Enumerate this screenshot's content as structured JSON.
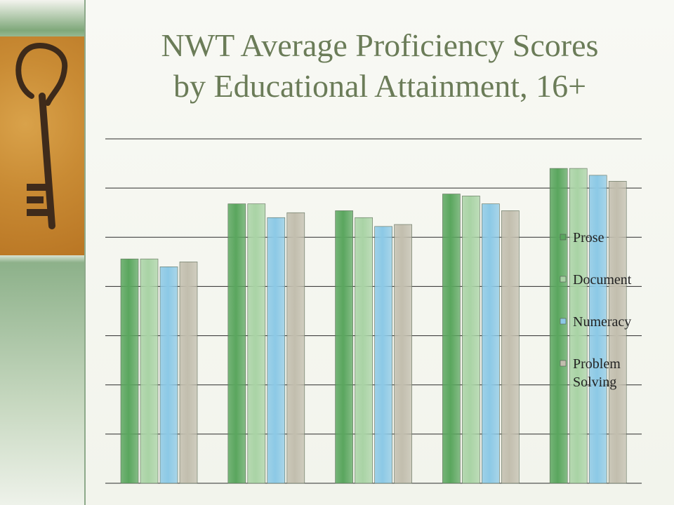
{
  "slide": {
    "title_line1": "NWT Average Proficiency Scores",
    "title_line2": "by Educational Attainment, 16+"
  },
  "chart_data": {
    "type": "bar",
    "title": "NWT Average Proficiency Scores by Educational Attainment, 16+",
    "categories": [
      "",
      "",
      "",
      "",
      ""
    ],
    "ylim": [
      0,
      350
    ],
    "grid": true,
    "legend_position": "right",
    "series": [
      {
        "name": "Prose",
        "color": "#5aa65e",
        "values": [
          228,
          284,
          277,
          294,
          320
        ]
      },
      {
        "name": "Document",
        "color": "#a9d3a5",
        "values": [
          228,
          284,
          270,
          292,
          320
        ]
      },
      {
        "name": "Numeracy",
        "color": "#8cc9e6",
        "values": [
          220,
          270,
          261,
          284,
          313
        ]
      },
      {
        "name": "Problem Solving",
        "color": "#c2beae",
        "values": [
          225,
          275,
          263,
          277,
          307
        ]
      }
    ]
  }
}
